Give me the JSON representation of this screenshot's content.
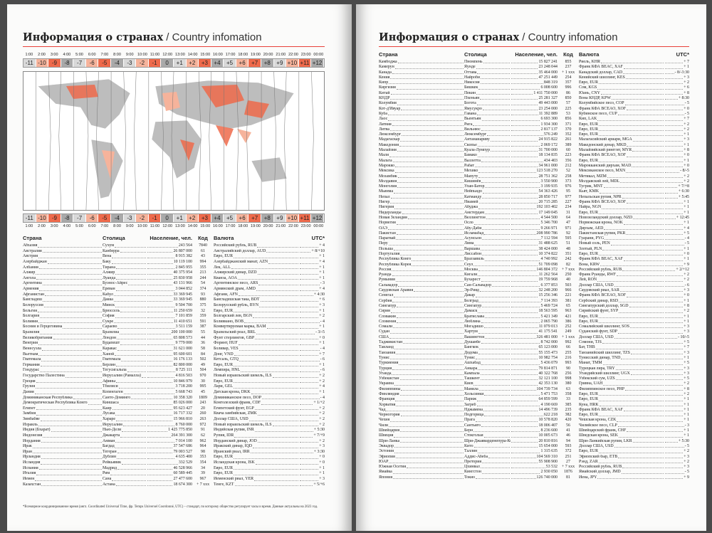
{
  "title": {
    "ru": "Информация о странах",
    "en": " / Country infomation"
  },
  "timezones": {
    "times": [
      "1:00",
      "2:00",
      "3:00",
      "4:00",
      "5:00",
      "6:00",
      "7:00",
      "8:00",
      "9:00",
      "10:00",
      "11:00",
      "12:00",
      "13:00",
      "14:00",
      "15:00",
      "16:00",
      "17:00",
      "18:00",
      "19:00",
      "20:00",
      "21:00",
      "22:00",
      "23:00",
      "00:00"
    ],
    "offsets": [
      "-11",
      "-10",
      "-9",
      "-8",
      "-7",
      "-6",
      "-5",
      "-4",
      "-3",
      "-2",
      "-1",
      "0",
      "+1",
      "+2",
      "+3",
      "+4",
      "+5",
      "+6",
      "+7",
      "+8",
      "+9",
      "+10",
      "+11",
      "+12"
    ],
    "colors": [
      "#d9d9d9",
      "#f6b39b",
      "#ef6a4b",
      "#a9a9a9"
    ]
  },
  "headers": {
    "country": "Страна",
    "capital": "Столица",
    "population": "Население, чел.",
    "code": "Код",
    "currency": "Валюта",
    "utc": "UTC*"
  },
  "left_rows": [
    [
      "Абхазия",
      "Сухум",
      "243 564",
      "7840",
      "Российский рубль, RUB",
      "+ 4"
    ],
    [
      "Австралия",
      "Канберра",
      "26 807 000",
      "61",
      "Австралийский доллар, AUD",
      "+ 8/+10"
    ],
    [
      "Австрия",
      "Вена",
      "8 915 382",
      "43",
      "Евро, EUR",
      "+ 1"
    ],
    [
      "Азербайджан",
      "Баку",
      "10 119 100",
      "994",
      "Азербайджанский манат, AZN",
      "+ 4"
    ],
    [
      "Албания",
      "Тирана",
      "2 845 955",
      "355",
      "Лек, ALL",
      "+ 1"
    ],
    [
      "Алжир",
      "Алжир",
      "40 375 954",
      "213",
      "Алжирский динар, DZD",
      "+ 1"
    ],
    [
      "Ангола",
      "Луанда",
      "25 830 958",
      "244",
      "Кванза, AOA",
      "+ 1"
    ],
    [
      "Аргентина",
      "Буэнос-Айрес",
      "43 131 966",
      "54",
      "Аргентинское песо, ARS",
      "- 3"
    ],
    [
      "Армения",
      "Ереван",
      "3 044 852",
      "374",
      "Армянский драм, AMD",
      "+ 4"
    ],
    [
      "Афганистан",
      "Кабул",
      "33 369 945",
      "93",
      "Афгани, AFN",
      "+ 4:30"
    ],
    [
      "Бангладеш",
      "Дакка",
      "33 369 945",
      "880",
      "Бангладешская така, BDT",
      "+ 6"
    ],
    [
      "Белоруссия",
      "Минск",
      "9 504 700",
      "375",
      "Белорусский рубль, BYN",
      "+ 3"
    ],
    [
      "Бельгия",
      "Брюссель",
      "11 250 659",
      "32",
      "Евро, EUR",
      "+ 1"
    ],
    [
      "Болгария",
      "София",
      "7 101 859",
      "359",
      "Болгарский лев, BGN",
      "+ 2"
    ],
    [
      "Боливия",
      "Сукре",
      "11 410 651",
      "591",
      "Боливиано, BOB",
      "- 4"
    ],
    [
      "Босния и Герцеговина",
      "Сараево",
      "3 511 159",
      "387",
      "Конвертируемая марка, BAM",
      "+ 1"
    ],
    [
      "Бразилия",
      "Бразилиа",
      "200 100 000",
      "55",
      "Бразильский реал, BRL",
      "- 3/-5"
    ],
    [
      "Великобритания",
      "Лондон",
      "65 808 573",
      "44",
      "Фунт стерлингов, GBP",
      "+ 0"
    ],
    [
      "Венгрия",
      "Будапешт",
      "9 779 000",
      "36",
      "Форинт, HUF",
      "+ 1"
    ],
    [
      "Венесуэла",
      "Каракас",
      "31 621 000",
      "58",
      "Боливар, VES",
      "- 4"
    ],
    [
      "Вьетнам",
      "Ханой",
      "95 600 601",
      "84",
      "Донг, VND",
      "+ 7"
    ],
    [
      "Гватемала",
      "Гватемала",
      "16 176 133",
      "502",
      "Кетсаль, GTQ",
      "- 6"
    ],
    [
      "Германия",
      "Берлин",
      "82 800 000",
      "49",
      "Евро, EUR",
      "+ 1"
    ],
    [
      "Гондурас",
      "Тегусигальпа",
      "8 725 111",
      "504",
      "Лемпира, HNL",
      "- 6"
    ],
    [
      "Государство Палестина",
      "Иерусалим (Рамалла)",
      "4 816 503",
      "970",
      "Новый израильский шекель, ILS",
      "+ 2"
    ],
    [
      "Греция",
      "Афины",
      "10 846 979",
      "30",
      "Евро, EUR",
      "+ 2"
    ],
    [
      "Грузия",
      "Тбилиси",
      "3 718 200",
      "995",
      "Лари, GEL",
      "+ 4"
    ],
    [
      "Дания",
      "Копенгаген",
      "5 668 743",
      "45",
      "Датская крона, DKK",
      "+ 1"
    ],
    [
      "Доминиканская Республика",
      "Санто-Доминго",
      "10 358 320",
      "1809",
      "Доминиканское песо, DOP",
      "- 4"
    ],
    [
      "Демократическая Республика Конго",
      "Киншаса",
      "85 026 000",
      "243",
      "Конголезский франк, CDF",
      "+ 1/+2"
    ],
    [
      "Египет",
      "Каир",
      "95 623 427",
      "20",
      "Египетский фунт, EGP",
      "+ 2"
    ],
    [
      "Замбия",
      "Лусака",
      "16 717 332",
      "260",
      "Квача замбийская, ZMK",
      "+ 2"
    ],
    [
      "Зимбабве",
      "Хараре",
      "15 966 810",
      "263",
      "Доллар США, USD",
      "+ 2"
    ],
    [
      "Израиль",
      "Иерусалим",
      "8 760 000",
      "972",
      "Новый израильский шекель, ILS",
      "+ 2"
    ],
    [
      "Индия (Бхарат)",
      "Нью-Дели",
      "1 425 775 850",
      "91",
      "Индийская рупия, INR",
      "+ 5:30"
    ],
    [
      "Индонезия",
      "Джакарта",
      "264 391 300",
      "62",
      "Рупия, IDR",
      "+ 7/+9"
    ],
    [
      "Иордания",
      "Амман",
      "7 014 100",
      "962",
      "Иорданский динар, JOD",
      "+ 2"
    ],
    [
      "Ирак",
      "Багдад",
      "37 547 686",
      "964",
      "Иракский динар, IQD",
      "+ 3"
    ],
    [
      "Иран",
      "Тегеран",
      "79 003 527",
      "98",
      "Иранский риал, IRR",
      "+ 3:30"
    ],
    [
      "Ирландия",
      "Дублин",
      "4 635 400",
      "353",
      "Евро, EUR",
      "+ 0"
    ],
    [
      "Исландия",
      "Рейкьявик",
      "332 529",
      "354",
      "Исландская крона, ISK",
      "+ 0"
    ],
    [
      "Испания",
      "Мадрид",
      "46 528 966",
      "34",
      "Евро, EUR",
      "+ 1"
    ],
    [
      "Италия",
      "Рим",
      "60 589 445",
      "39",
      "Евро, EUR",
      "+ 1"
    ],
    [
      "Йемен",
      "Сана",
      "27 477 600",
      "967",
      "Йеменский риал, YER",
      "+ 3"
    ],
    [
      "Казахстан",
      "Астана",
      "18 674 300",
      "+ 7 xxx",
      "Тенге, KZT",
      "+ 5/+6"
    ]
  ],
  "footnote": "*Всемирное координированное время (англ. Coordinated Universal Time, фр. Temps Universel Coordonné, UTC) – стандарт, по которому общество регулирует часы и время. Данные актуальны на 2023 год.",
  "right_rows": [
    [
      "Камбоджа",
      "Пномпень",
      "15 827 241",
      "855",
      "Риель, KHR",
      "+ 7"
    ],
    [
      "Камерун",
      "Яунде",
      "23 248 044",
      "237",
      "Франк КФА BEAC, XAF",
      "+ 1"
    ],
    [
      "Канада",
      "Оттава",
      "35 464 000",
      "+ 1 xxx",
      "Канадский доллар, CAD",
      "- 8/-3:30"
    ],
    [
      "Кения",
      "Найроби",
      "47 251 449",
      "254",
      "Кенийский шиллинг, KES",
      "+ 3"
    ],
    [
      "Кипр",
      "Никосия",
      "848 319",
      "357",
      "Евро, EUR",
      "+ 2"
    ],
    [
      "Киргизия",
      "Бишкек",
      "6 008 600",
      "996",
      "Сом, KGS",
      "+ 6"
    ],
    [
      "Китай",
      "Пекин",
      "1 411 750 000",
      "86",
      "Юань, CNY",
      "+ 8"
    ],
    [
      "КНДР",
      "Пхеньян",
      "25 281 327",
      "850",
      "Вона КНДР, KPW",
      "+ 8:30"
    ],
    [
      "Колумбия",
      "Богота",
      "49 443 000",
      "57",
      "Колумбийское песо, COP",
      "- 5"
    ],
    [
      "Кот-д'Ивуар",
      "Ямусукро",
      "23 254 000",
      "225",
      "Франк КФА BCEAO, XOF",
      "+ 0"
    ],
    [
      "Куба",
      "Гавана",
      "11 392 889",
      "53",
      "Кубинское песо, CUP",
      "- 5"
    ],
    [
      "Лаос",
      "Вьентьян",
      "6 693 300",
      "856",
      "Кип, LAK",
      "+ 7"
    ],
    [
      "Латвия",
      "Рига",
      "1 934 300",
      "371",
      "Евро, EUR",
      "+ 2"
    ],
    [
      "Литва",
      "Вильнюс",
      "2 817 137",
      "370",
      "Евро, EUR",
      "+ 2"
    ],
    [
      "Люксембург",
      "Люксембург",
      "576 249",
      "352",
      "Евро, EUR",
      "+ 1"
    ],
    [
      "Мадагаскар",
      "Антананариву",
      "24 915 822",
      "261",
      "Малагасийский ариари, MGA",
      "+ 3"
    ],
    [
      "Македония",
      "Скопье",
      "2 069 172",
      "389",
      "Македонский денар, MKD",
      "+ 1"
    ],
    [
      "Малайзия",
      "Куала-Лумпур",
      "31 700 000",
      "60",
      "Малайзийский ринггит, MYR",
      "+ 8"
    ],
    [
      "Мали",
      "Бамако",
      "18 134 835",
      "223",
      "Франк КФА BCEAO, XOF",
      "+ 0"
    ],
    [
      "Мальта",
      "Валлетта",
      "434 403",
      "356",
      "Евро, EUR",
      "+ 1"
    ],
    [
      "Марокко",
      "Рабат",
      "34 961 000",
      "212",
      "Марокканский дирхам, MAD",
      "+ 0"
    ],
    [
      "Мексика",
      "Мехико",
      "123 518 270",
      "52",
      "Мексиканское песо, MXN",
      "- 8/-5"
    ],
    [
      "Мозамбик",
      "Мапуту",
      "28 751 362",
      "258",
      "Метикал, MZM",
      "+ 2"
    ],
    [
      "Молдавия",
      "Кишинёв",
      "3 550 900",
      "373",
      "Молдавский лей, MDL",
      "+ 2"
    ],
    [
      "Монголия",
      "Улан-Батор",
      "3 199 935",
      "976",
      "Тугрик, MNT",
      "+ 7/+8"
    ],
    [
      "Мьянма",
      "Нейпьидо",
      "54 363 426",
      "95",
      "Кьят, KMK",
      "+ 6:30"
    ],
    [
      "Непал",
      "Катманду",
      "28 850 717",
      "977",
      "Непальская рупия, NPR",
      "+ 5:45"
    ],
    [
      "Нигер",
      "Ниамей",
      "20 715 285",
      "227",
      "Франк КФА BCEAO, XOF",
      "+ 1"
    ],
    [
      "Нигерия",
      "Абуджа",
      "192 103 402",
      "234",
      "Найра, NGN",
      "+ 1"
    ],
    [
      "Нидерланды",
      "Амстердам",
      "17 149 045",
      "31",
      "Евро, EUR",
      "+ 1"
    ],
    [
      "Новая Зеландия",
      "Веллингтон",
      "4 544 500",
      "64",
      "Новозеландский доллар, NZD",
      "+ 12:45"
    ],
    [
      "Норвегия",
      "Осло",
      "5 346 700",
      "47",
      "Норвежская крона, NOK",
      "+ 1"
    ],
    [
      "ОАЭ",
      "Абу-Даби",
      "9 266 971",
      "971",
      "Дирхам, AED",
      "+ 4"
    ],
    [
      "Пакистан",
      "Исламабад",
      "208 990 786",
      "92",
      "Пакистанская рупия, PKR",
      "+ 5"
    ],
    [
      "Парагвай",
      "Асунсьон",
      "7 112 594",
      "595",
      "Гуарани, PYG",
      "- 4"
    ],
    [
      "Перу",
      "Лима",
      "31 488 625",
      "51",
      "Новый соль, PEN",
      "- 5"
    ],
    [
      "Польша",
      "Варшава",
      "38 424 000",
      "48",
      "Злотый, PLN",
      "+ 1"
    ],
    [
      "Португалия",
      "Лиссабон",
      "10 374 822",
      "351",
      "Евро, EUR",
      "+ 0"
    ],
    [
      "Республика Конго",
      "Браззавиль",
      "4 740 992",
      "242",
      "Франк КФА BEAC, XAF",
      "+ 1"
    ],
    [
      "Республика Корея",
      "Сеул",
      "51 709 098",
      "82",
      "Вона, KRW",
      "+ 9"
    ],
    [
      "Россия",
      "Москва",
      "146 804 372",
      "+ 7 xxx",
      "Российский рубль, RUB",
      "+ 2/+12"
    ],
    [
      "Руанда",
      "Кигали",
      "11 262 564",
      "250",
      "Франк Руанды, RWF",
      "+ 2"
    ],
    [
      "Румыния",
      "Бухарест",
      "19 759 968",
      "40",
      "Лей, RON",
      "+ 2"
    ],
    [
      "Сальвадор",
      "Сан-Сальвадор",
      "6 377 853",
      "503",
      "Доллар США, USD",
      "- 6"
    ],
    [
      "Саудовская Аравия",
      "Эр-Рияд",
      "32 248 200",
      "966",
      "Саудовский риал, SAR",
      "+ 3"
    ],
    [
      "Сенегал",
      "Дакар",
      "15 256 346",
      "221",
      "Франк КФА BCEAO, XOF",
      "+ 0"
    ],
    [
      "Сербия",
      "Белград",
      "7 114 393",
      "381",
      "Сербский динар, RSD",
      "+ 1"
    ],
    [
      "Сингапур",
      "Сингапур",
      "5 469 724",
      "65",
      "Сингапурский доллар, SGD",
      "+ 8"
    ],
    [
      "Сирия",
      "Дамаск",
      "18 563 595",
      "963",
      "Сирийский фунт, SYP",
      "+ 2"
    ],
    [
      "Словакия",
      "Братислава",
      "5 421 349",
      "421",
      "Евро, EUR",
      "+ 1"
    ],
    [
      "Словения",
      "Любляна",
      "2 065 790",
      "386",
      "Евро, EUR",
      "+ 1"
    ],
    [
      "Сомали",
      "Могадишо",
      "11 079 013",
      "252",
      "Сомалийский шиллинг, SOS",
      "+ 3"
    ],
    [
      "Судан",
      "Хартум",
      "41 175 541",
      "249",
      "Суданский фунт, SDP",
      "+ 3"
    ],
    [
      "США",
      "Вашингтон",
      "326 481 000",
      "+ 1 xxx",
      "Доллар США, USD",
      "- 10/-5"
    ],
    [
      "Таджикистан",
      "Душанбе",
      "8 742 000",
      "992",
      "Сомони, TJS",
      "+ 5"
    ],
    [
      "Таиланд",
      "Бангкок",
      "65 123 000",
      "66",
      "Бат, THB",
      "+ 7"
    ],
    [
      "Танзания",
      "Додома",
      "55 155 473",
      "255",
      "Танзанийский шиллинг, TZS",
      "+ 3"
    ],
    [
      "Тунис",
      "Тунис",
      "10 982 754",
      "216",
      "Тунисский динар, TND",
      "+ 1"
    ],
    [
      "Туркмения",
      "Ашхабад",
      "5 436 079",
      "993",
      "Манат, TMM",
      "+ 5"
    ],
    [
      "Турция",
      "Анкара",
      "79 814 871",
      "90",
      "Турецкая лира, TRY",
      "+ 3"
    ],
    [
      "Уганда",
      "Кампала",
      "40 322 768",
      "256",
      "Угандийский шиллинг, UGX",
      "+ 3"
    ],
    [
      "Узбекистан",
      "Ташкент",
      "32 121 100",
      "998",
      "Узбекский сум, UZS",
      "+ 5"
    ],
    [
      "Украина",
      "Киев",
      "42 353 130",
      "380",
      "Гривна, UAH",
      "+ 2"
    ],
    [
      "Филиппины",
      "Манила",
      "104 739 734",
      "63",
      "Филиппинское песо, PHP",
      "+ 8"
    ],
    [
      "Финляндия",
      "Хельсинки",
      "5 471 753",
      "358",
      "Евро, EUR",
      "+ 2"
    ],
    [
      "Франция",
      "Париж",
      "64 859 599",
      "33",
      "Евро, EUR",
      "+ 1"
    ],
    [
      "Хорватия",
      "Загреб",
      "4 190 669",
      "385",
      "Куна, HRK",
      "+ 1"
    ],
    [
      "Чад",
      "Нджамена",
      "14 496 739",
      "235",
      "Франк КФА BEAC, XAF",
      "+ 1"
    ],
    [
      "Черногория",
      "Подгорица",
      "622 218",
      "382",
      "Евро, EUR",
      "+ 1"
    ],
    [
      "Чехия",
      "Прага",
      "10 578 820",
      "420",
      "Чешская крона, CZK",
      "+ 1"
    ],
    [
      "Чили",
      "Сантьяго",
      "18 006 407",
      "56",
      "Чилийское песо, CLP",
      "- 3"
    ],
    [
      "Швейцария",
      "Берн",
      "8 236 600",
      "41",
      "Швейцарский франк, CHF",
      "+ 1"
    ],
    [
      "Швеция",
      "Стокгольм",
      "10 005 673",
      "46",
      "Шведская крона, SEK",
      "+ 1"
    ],
    [
      "Шри-Ланка",
      "Шри-Джаяварденепура-Котте",
      "20 810 816",
      "94",
      "Шри-Ланкийская рупия, LKR",
      "+ 5:30"
    ],
    [
      "Эквадор",
      "Кито",
      "15 654 000",
      "593",
      "Доллар США, USD",
      "- 5"
    ],
    [
      "Эстония",
      "Таллин",
      "1 315 635",
      "372",
      "Евро, EUR",
      "+ 2"
    ],
    [
      "Эфиопия",
      "Аддис-Абеба",
      "104 569 310",
      "251",
      "Эфиопский быр, ETB",
      "+ 3"
    ],
    [
      "ЮАР",
      "Претория",
      "55 908 900",
      "27",
      "Рэнд, ZAR",
      "+ 2"
    ],
    [
      "Южная Осетия",
      "Цхинвал",
      "53 532",
      "+ 7 xxx",
      "Российский рубль, RUB",
      "+ 3"
    ],
    [
      "Ямайка",
      "Кингстон",
      "2 930 050",
      "1876",
      "Ямайский доллар, JMD",
      "- 5"
    ],
    [
      "Япония",
      "Токио",
      "126 740 000",
      "81",
      "Иена, JPY",
      "+ 9"
    ]
  ]
}
